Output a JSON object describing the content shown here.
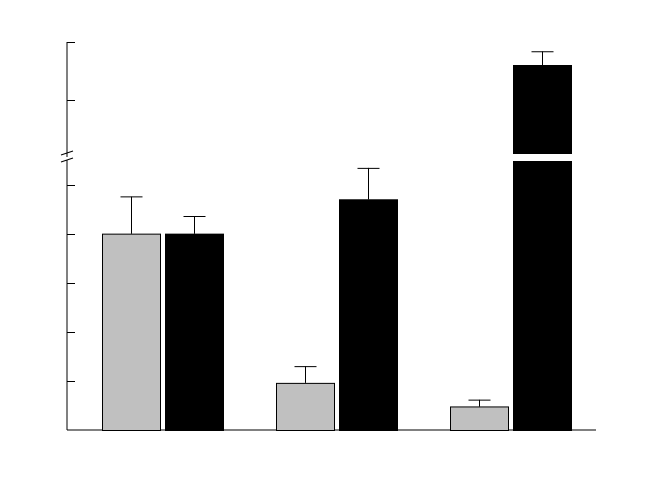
{
  "chart_data": {
    "type": "bar",
    "categories": [
      "",
      "",
      ""
    ],
    "series": [
      {
        "values": [
          2.0,
          0.48,
          0.24
        ],
        "errors": [
          0.38,
          0.17,
          0.07
        ],
        "color": "#c0c0c0"
      },
      {
        "values": [
          2.0,
          2.35,
          5.95
        ],
        "errors": [
          0.18,
          0.32,
          0.18
        ],
        "color": "#000000"
      }
    ],
    "y_axis": {
      "broken": true,
      "lower_segment": [
        0,
        2.75
      ],
      "upper_segment": [
        4.75,
        6.25
      ],
      "tick_labels_shown": false
    },
    "error_bars": "upper only",
    "legend": "none",
    "grid": false,
    "title": "",
    "xlabel": "",
    "ylabel": ""
  }
}
